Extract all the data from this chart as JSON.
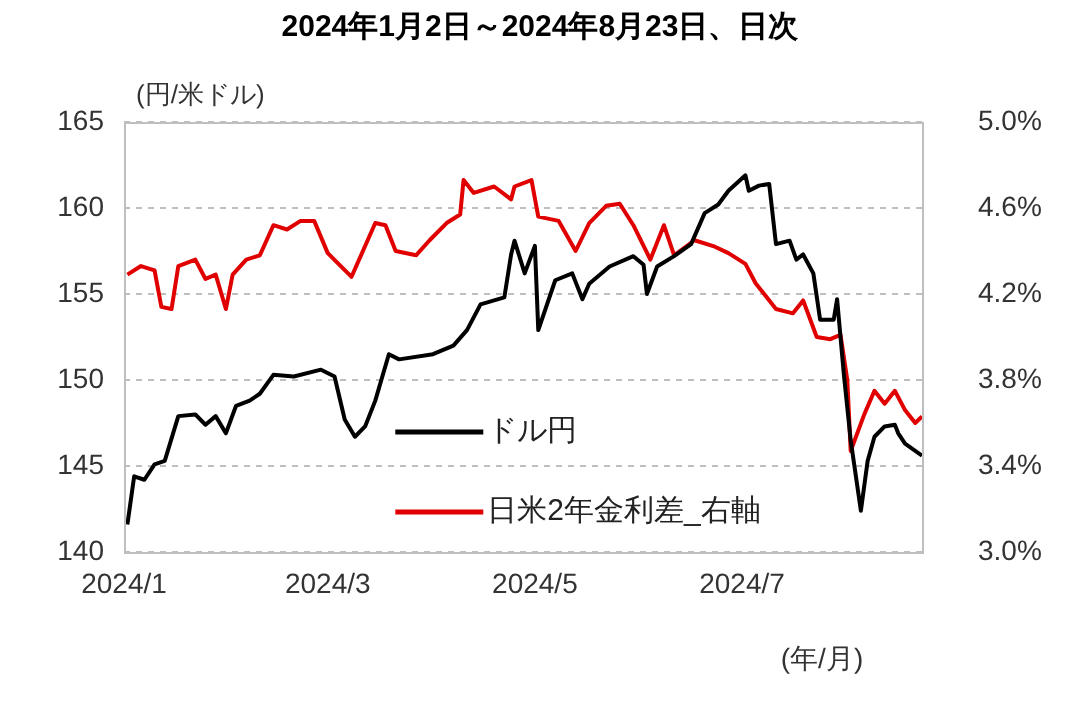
{
  "chart_data": {
    "type": "line",
    "title": "2024年1月2日～2024年8月23日、日次",
    "ylabel": "(円/米ドル)",
    "annotations": [
      "(年/月)"
    ],
    "xlim": [
      "2024-01-01",
      "2024-08-23"
    ],
    "xticks": [
      {
        "value": "2024-01-01",
        "label": "2024/1"
      },
      {
        "value": "2024-03-01",
        "label": "2024/3"
      },
      {
        "value": "2024-05-01",
        "label": "2024/5"
      },
      {
        "value": "2024-07-01",
        "label": "2024/7"
      }
    ],
    "ylim": [
      140,
      165
    ],
    "yticks": [
      140,
      145,
      150,
      155,
      160,
      165
    ],
    "y2lim": [
      3.0,
      5.0
    ],
    "y2ticks": [
      {
        "value": 3.0,
        "label": "3.0%"
      },
      {
        "value": 3.4,
        "label": "3.4%"
      },
      {
        "value": 3.8,
        "label": "3.8%"
      },
      {
        "value": 4.2,
        "label": "4.2%"
      },
      {
        "value": 4.6,
        "label": "4.6%"
      },
      {
        "value": 5.0,
        "label": "5.0%"
      }
    ],
    "grid": "y",
    "legend": "bottom right",
    "marker": "none",
    "line_style": "solid",
    "series": [
      {
        "name": "ドル円",
        "color": "#000000",
        "x": [
          "2024-01-02",
          "2024-01-04",
          "2024-01-07",
          "2024-01-10",
          "2024-01-13",
          "2024-01-17",
          "2024-01-22",
          "2024-01-25",
          "2024-01-28",
          "2024-01-31",
          "2024-02-03",
          "2024-02-07",
          "2024-02-10",
          "2024-02-14",
          "2024-02-20",
          "2024-02-28",
          "2024-03-03",
          "2024-03-06",
          "2024-03-09",
          "2024-03-12",
          "2024-03-15",
          "2024-03-19",
          "2024-03-22",
          "2024-04-01",
          "2024-04-07",
          "2024-04-11",
          "2024-04-15",
          "2024-04-22",
          "2024-04-24",
          "2024-04-25",
          "2024-04-28",
          "2024-05-01",
          "2024-05-02",
          "2024-05-07",
          "2024-05-12",
          "2024-05-15",
          "2024-05-17",
          "2024-05-23",
          "2024-05-30",
          "2024-06-02",
          "2024-06-03",
          "2024-06-06",
          "2024-06-11",
          "2024-06-16",
          "2024-06-20",
          "2024-06-24",
          "2024-06-27",
          "2024-07-02",
          "2024-07-03",
          "2024-07-06",
          "2024-07-09",
          "2024-07-11",
          "2024-07-15",
          "2024-07-17",
          "2024-07-19",
          "2024-07-22",
          "2024-07-24",
          "2024-07-26",
          "2024-07-28",
          "2024-07-29",
          "2024-07-31",
          "2024-08-02",
          "2024-08-05",
          "2024-08-07",
          "2024-08-09",
          "2024-08-12",
          "2024-08-15",
          "2024-08-16",
          "2024-08-18",
          "2024-08-23"
        ],
        "values": [
          141.6,
          144.4,
          144.2,
          145.1,
          145.3,
          147.9,
          148.0,
          147.4,
          147.9,
          146.9,
          148.5,
          148.8,
          149.2,
          150.3,
          150.2,
          150.6,
          150.2,
          147.7,
          146.7,
          147.3,
          148.8,
          151.5,
          151.2,
          151.5,
          152.0,
          152.9,
          154.4,
          154.8,
          157.3,
          158.1,
          156.2,
          157.8,
          152.9,
          155.8,
          156.2,
          154.7,
          155.6,
          156.6,
          157.2,
          156.7,
          155.0,
          156.6,
          157.2,
          157.9,
          159.7,
          160.2,
          161.0,
          161.9,
          161.0,
          161.3,
          161.4,
          157.9,
          158.1,
          157.0,
          157.3,
          156.2,
          153.5,
          153.5,
          153.5,
          154.7,
          150.3,
          146.5,
          142.4,
          145.3,
          146.7,
          147.3,
          147.4,
          146.9,
          146.3,
          145.6
        ]
      },
      {
        "name": "日米2年金利差_右軸",
        "color": "#e00000",
        "axis": "y2",
        "x": [
          "2024-01-02",
          "2024-01-06",
          "2024-01-10",
          "2024-01-12",
          "2024-01-15",
          "2024-01-17",
          "2024-01-22",
          "2024-01-25",
          "2024-01-28",
          "2024-01-31",
          "2024-02-02",
          "2024-02-06",
          "2024-02-10",
          "2024-02-14",
          "2024-02-18",
          "2024-02-22",
          "2024-02-26",
          "2024-03-01",
          "2024-03-08",
          "2024-03-15",
          "2024-03-18",
          "2024-03-21",
          "2024-03-27",
          "2024-03-31",
          "2024-04-05",
          "2024-04-09",
          "2024-04-10",
          "2024-04-13",
          "2024-04-19",
          "2024-04-24",
          "2024-04-25",
          "2024-04-30",
          "2024-05-02",
          "2024-05-08",
          "2024-05-13",
          "2024-05-17",
          "2024-05-22",
          "2024-05-26",
          "2024-05-30",
          "2024-06-04",
          "2024-06-08",
          "2024-06-11",
          "2024-06-17",
          "2024-06-23",
          "2024-06-27",
          "2024-07-02",
          "2024-07-05",
          "2024-07-11",
          "2024-07-16",
          "2024-07-19",
          "2024-07-23",
          "2024-07-27",
          "2024-07-30",
          "2024-08-01",
          "2024-08-02",
          "2024-08-06",
          "2024-08-09",
          "2024-08-12",
          "2024-08-15",
          "2024-08-18",
          "2024-08-21",
          "2024-08-23"
        ],
        "values": [
          4.29,
          4.33,
          4.31,
          4.14,
          4.13,
          4.33,
          4.36,
          4.27,
          4.29,
          4.13,
          4.29,
          4.36,
          4.38,
          4.52,
          4.5,
          4.54,
          4.54,
          4.39,
          4.28,
          4.53,
          4.52,
          4.4,
          4.38,
          4.45,
          4.53,
          4.57,
          4.73,
          4.67,
          4.7,
          4.64,
          4.7,
          4.73,
          4.56,
          4.54,
          4.4,
          4.53,
          4.61,
          4.62,
          4.52,
          4.36,
          4.52,
          4.38,
          4.45,
          4.42,
          4.39,
          4.34,
          4.25,
          4.13,
          4.11,
          4.17,
          4.0,
          3.99,
          4.01,
          3.8,
          3.47,
          3.64,
          3.75,
          3.69,
          3.75,
          3.66,
          3.6,
          3.63
        ]
      }
    ]
  }
}
